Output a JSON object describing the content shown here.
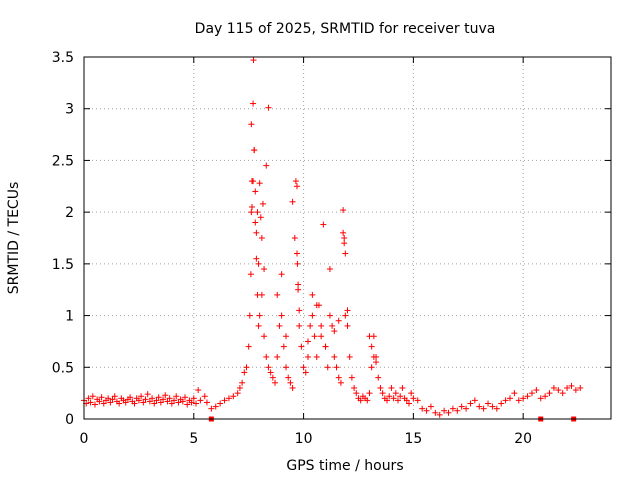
{
  "chart_data": {
    "type": "scatter",
    "title": "Day 115 of 2025, SRMTID for receiver tuva",
    "xlabel": "GPS time / hours",
    "ylabel": "SRMTID / TECUs",
    "xlim": [
      0,
      24
    ],
    "ylim": [
      0,
      3.5
    ],
    "xticks": [
      0,
      5,
      10,
      15,
      20
    ],
    "xtick_labels": [
      "0",
      "5",
      "10",
      "15",
      "20"
    ],
    "yticks": [
      0,
      0.5,
      1,
      1.5,
      2,
      2.5,
      3,
      3.5
    ],
    "ytick_labels": [
      "0",
      "0.5",
      "1",
      "1.5",
      "2",
      "2.5",
      "3",
      "3.5"
    ],
    "grid": true,
    "marker": "+",
    "color": "#ff0000",
    "series": [
      {
        "name": "SRMTID",
        "x": [
          0.0,
          0.1,
          0.2,
          0.3,
          0.4,
          0.5,
          0.6,
          0.7,
          0.8,
          0.9,
          1.0,
          1.1,
          1.2,
          1.3,
          1.4,
          1.5,
          1.6,
          1.7,
          1.8,
          1.9,
          2.0,
          2.1,
          2.2,
          2.3,
          2.4,
          2.5,
          2.6,
          2.7,
          2.8,
          2.9,
          3.0,
          3.1,
          3.2,
          3.3,
          3.4,
          3.5,
          3.6,
          3.7,
          3.8,
          3.9,
          4.0,
          4.1,
          4.2,
          4.3,
          4.4,
          4.5,
          4.6,
          4.7,
          4.8,
          4.9,
          5.0,
          5.1,
          5.2,
          5.3,
          5.5,
          5.6,
          5.8,
          6.0,
          6.2,
          6.4,
          6.6,
          6.8,
          7.0,
          7.1,
          7.2,
          7.3,
          7.4,
          7.5,
          7.55,
          7.6,
          7.62,
          7.65,
          7.7,
          7.72,
          7.75,
          7.8,
          7.85,
          7.9,
          7.95,
          8.0,
          8.1,
          8.2,
          8.3,
          8.4,
          8.5,
          8.6,
          8.7,
          8.8,
          8.9,
          9.0,
          9.1,
          9.2,
          9.3,
          9.4,
          9.5,
          9.6,
          9.65,
          9.7,
          9.75,
          9.8,
          9.9,
          10.0,
          10.1,
          10.2,
          10.3,
          10.4,
          10.5,
          10.6,
          10.7,
          10.8,
          10.9,
          11.0,
          11.1,
          11.2,
          11.3,
          11.4,
          11.5,
          11.6,
          11.7,
          11.8,
          11.85,
          11.9,
          12.0,
          12.1,
          12.2,
          12.3,
          12.4,
          12.5,
          12.6,
          12.7,
          12.8,
          12.9,
          13.0,
          13.1,
          13.2,
          13.3,
          13.4,
          13.5,
          13.6,
          13.7,
          13.8,
          13.9,
          14.0,
          14.1,
          14.2,
          14.3,
          14.4,
          14.5,
          14.6,
          14.7,
          14.8,
          14.9,
          15.0,
          15.2,
          15.4,
          15.6,
          15.8,
          16.0,
          16.2,
          16.4,
          16.6,
          16.8,
          17.0,
          17.2,
          17.4,
          17.6,
          17.8,
          18.0,
          18.2,
          18.4,
          18.6,
          18.8,
          19.0,
          19.2,
          19.4,
          19.6,
          19.8,
          20.0,
          20.2,
          20.4,
          20.6,
          20.8,
          21.0,
          21.2,
          21.4,
          21.6,
          21.8,
          22.0,
          22.2,
          22.4,
          22.6,
          7.62,
          7.65,
          7.7,
          7.75,
          7.8,
          7.85,
          7.9,
          7.95,
          8.0,
          8.05,
          8.1,
          8.15,
          8.2,
          8.3,
          8.4,
          8.8,
          9.0,
          9.2,
          9.5,
          9.7,
          9.72,
          9.75,
          9.8,
          10.2,
          10.4,
          10.6,
          10.8,
          11.0,
          11.2,
          11.4,
          11.6,
          11.8,
          11.85,
          11.9,
          12.0,
          13.0,
          13.1,
          13.2,
          13.3
        ],
        "y": [
          0.18,
          0.15,
          0.2,
          0.16,
          0.22,
          0.14,
          0.19,
          0.17,
          0.21,
          0.15,
          0.18,
          0.2,
          0.16,
          0.19,
          0.22,
          0.17,
          0.15,
          0.2,
          0.18,
          0.16,
          0.19,
          0.21,
          0.17,
          0.15,
          0.2,
          0.18,
          0.22,
          0.16,
          0.19,
          0.24,
          0.17,
          0.2,
          0.15,
          0.18,
          0.21,
          0.16,
          0.19,
          0.23,
          0.17,
          0.2,
          0.15,
          0.18,
          0.22,
          0.16,
          0.19,
          0.17,
          0.21,
          0.14,
          0.18,
          0.16,
          0.2,
          0.15,
          0.28,
          0.18,
          0.22,
          0.16,
          0.1,
          0.12,
          0.15,
          0.18,
          0.2,
          0.22,
          0.25,
          0.3,
          0.35,
          0.45,
          0.5,
          0.7,
          1.0,
          1.4,
          2.0,
          2.3,
          3.05,
          3.47,
          2.6,
          2.2,
          1.8,
          2.0,
          1.5,
          2.28,
          1.2,
          0.8,
          0.6,
          0.5,
          0.45,
          0.4,
          0.35,
          0.6,
          0.9,
          1.4,
          0.7,
          0.5,
          0.4,
          0.35,
          0.3,
          1.75,
          2.3,
          1.6,
          1.3,
          0.9,
          0.7,
          0.5,
          0.45,
          0.6,
          0.9,
          1.2,
          0.8,
          0.6,
          1.1,
          0.8,
          1.88,
          0.7,
          0.5,
          1.45,
          0.9,
          0.6,
          0.5,
          0.4,
          0.35,
          2.02,
          1.75,
          1.0,
          0.9,
          0.6,
          0.4,
          0.3,
          0.25,
          0.2,
          0.18,
          0.22,
          0.2,
          0.18,
          0.25,
          0.5,
          0.8,
          0.6,
          0.4,
          0.3,
          0.25,
          0.2,
          0.18,
          0.22,
          0.3,
          0.2,
          0.25,
          0.18,
          0.22,
          0.3,
          0.2,
          0.18,
          0.15,
          0.25,
          0.2,
          0.18,
          0.1,
          0.08,
          0.12,
          0.06,
          0.04,
          0.08,
          0.06,
          0.1,
          0.08,
          0.12,
          0.1,
          0.15,
          0.18,
          0.12,
          0.1,
          0.15,
          0.12,
          0.1,
          0.15,
          0.18,
          0.2,
          0.25,
          0.18,
          0.2,
          0.22,
          0.25,
          0.28,
          0.2,
          0.22,
          0.25,
          0.3,
          0.28,
          0.25,
          0.3,
          0.32,
          0.28,
          0.3,
          2.85,
          2.05,
          2.3,
          2.6,
          1.9,
          1.55,
          1.2,
          0.9,
          1.0,
          1.95,
          1.75,
          2.08,
          1.45,
          2.45,
          3.01,
          1.2,
          1.0,
          0.8,
          2.1,
          2.25,
          1.5,
          1.25,
          1.05,
          0.75,
          1.0,
          1.1,
          0.9,
          0.7,
          1.0,
          0.85,
          0.95,
          1.8,
          1.7,
          1.6,
          1.05,
          0.8,
          0.7,
          0.6,
          0.55
        ]
      }
    ],
    "markers_on_axis": [
      5.8,
      20.8,
      22.3
    ]
  }
}
